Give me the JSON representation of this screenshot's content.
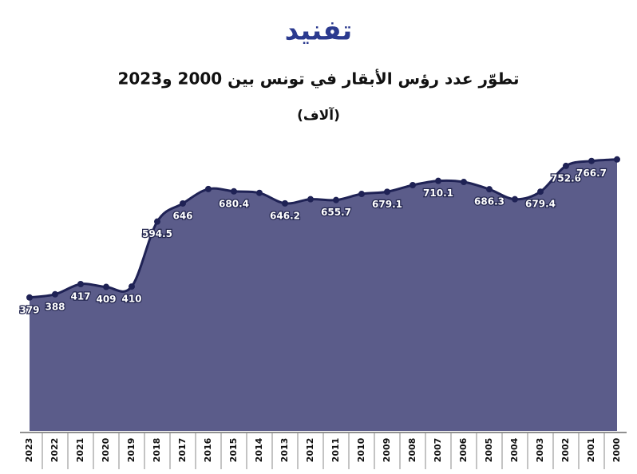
{
  "logo": "تفنيد",
  "chart_data": {
    "type": "area",
    "title": "تطوّر عدد رؤس الأبقار في تونس بين 2000 و2023",
    "subtitle": "(آلاف)",
    "categories": [
      "2023",
      "2022",
      "2021",
      "2020",
      "2019",
      "2018",
      "2017",
      "2016",
      "2015",
      "2014",
      "2013",
      "2012",
      "2011",
      "2010",
      "2009",
      "2008",
      "2007",
      "2006",
      "2005",
      "2004",
      "2003",
      "2002",
      "2001",
      "2000"
    ],
    "series": [
      {
        "name": "رؤس الأبقار",
        "color": "#5b5c8a",
        "line_color": "#1f2255",
        "values": [
          379,
          388,
          417,
          409,
          410,
          594.5,
          646,
          687,
          680.4,
          676,
          646.2,
          658,
          655.7,
          673,
          679.1,
          698,
          710.1,
          707,
          686.3,
          658,
          679.4,
          752.6,
          766.7,
          771
        ],
        "value_labels": [
          "379",
          "388",
          "417",
          "409",
          "410",
          "594.5",
          "646",
          null,
          "680.4",
          null,
          "646.2",
          null,
          "655.7",
          null,
          "679.1",
          null,
          "710.1",
          null,
          "686.3",
          null,
          "679.4",
          "752.6",
          "766.7",
          null
        ]
      }
    ],
    "ylim": [
      0,
      800
    ]
  }
}
